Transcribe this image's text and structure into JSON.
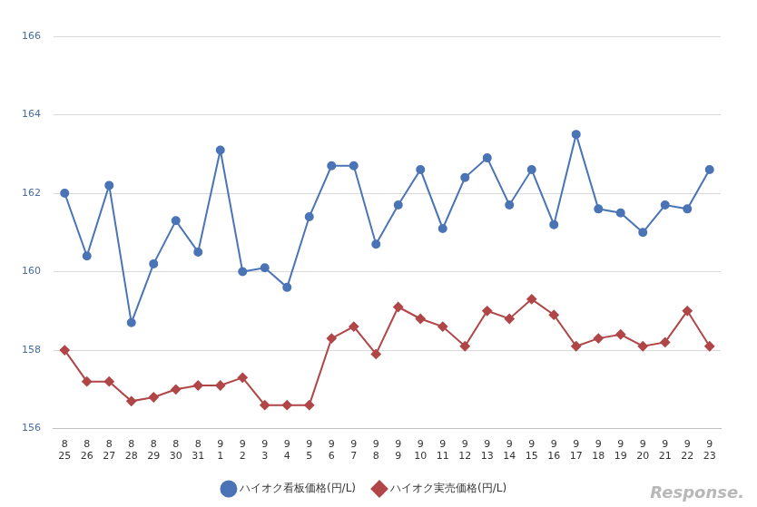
{
  "chart_data": {
    "type": "line",
    "categories": [
      [
        "8",
        "25"
      ],
      [
        "8",
        "26"
      ],
      [
        "8",
        "27"
      ],
      [
        "8",
        "28"
      ],
      [
        "8",
        "29"
      ],
      [
        "8",
        "30"
      ],
      [
        "8",
        "31"
      ],
      [
        "9",
        "1"
      ],
      [
        "9",
        "2"
      ],
      [
        "9",
        "3"
      ],
      [
        "9",
        "4"
      ],
      [
        "9",
        "5"
      ],
      [
        "9",
        "6"
      ],
      [
        "9",
        "7"
      ],
      [
        "9",
        "8"
      ],
      [
        "9",
        "9"
      ],
      [
        "9",
        "10"
      ],
      [
        "9",
        "11"
      ],
      [
        "9",
        "12"
      ],
      [
        "9",
        "13"
      ],
      [
        "9",
        "14"
      ],
      [
        "9",
        "15"
      ],
      [
        "9",
        "16"
      ],
      [
        "9",
        "17"
      ],
      [
        "9",
        "18"
      ],
      [
        "9",
        "19"
      ],
      [
        "9",
        "20"
      ],
      [
        "9",
        "21"
      ],
      [
        "9",
        "22"
      ],
      [
        "9",
        "23"
      ]
    ],
    "series": [
      {
        "name": "ハイオク看板価格(円/L)",
        "color": "#4a74b5",
        "marker": "circle",
        "values": [
          162.0,
          160.4,
          162.2,
          158.7,
          160.2,
          161.3,
          160.5,
          163.1,
          160.0,
          160.1,
          159.6,
          161.4,
          162.7,
          162.7,
          160.7,
          161.7,
          162.6,
          161.1,
          162.4,
          162.9,
          161.7,
          162.6,
          161.2,
          163.5,
          161.6,
          161.5,
          161.0,
          161.7,
          161.6,
          162.6
        ]
      },
      {
        "name": "ハイオク実売価格(円/L)",
        "color": "#b04647",
        "marker": "diamond",
        "values": [
          158.0,
          157.2,
          157.2,
          156.7,
          156.8,
          157.0,
          157.1,
          157.1,
          157.3,
          156.6,
          156.6,
          156.6,
          158.3,
          158.6,
          157.9,
          159.1,
          158.8,
          158.6,
          158.1,
          159.0,
          158.8,
          159.3,
          158.9,
          158.1,
          158.3,
          158.4,
          158.1,
          158.2,
          159.0,
          158.1
        ]
      }
    ],
    "ylim": [
      156,
      166
    ],
    "yticks": [
      156,
      158,
      160,
      162,
      164,
      166
    ],
    "grid": true,
    "legend": "bottom",
    "annotations": [
      "Response."
    ]
  }
}
